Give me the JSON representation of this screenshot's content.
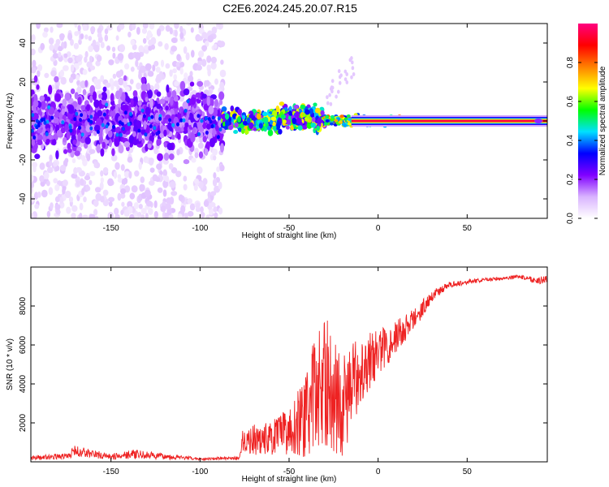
{
  "title": "C2E6.2024.245.20.07.R15",
  "chart_data": [
    {
      "type": "heatmap",
      "xlabel": "Height of straight line (km)",
      "ylabel": "Frequency (Hz)",
      "xlim": [
        -195,
        95
      ],
      "ylim": [
        -50,
        50
      ],
      "x_ticks": [
        -150,
        -100,
        -50,
        0,
        50
      ],
      "y_ticks": [
        -40,
        -20,
        0,
        20,
        40
      ],
      "colorbar": {
        "label": "Normalized spectral amplitude",
        "range": [
          0,
          1
        ],
        "ticks": [
          0.0,
          0.2,
          0.4,
          0.6,
          0.8
        ],
        "colors": [
          "#ffffff",
          "#d9b3ff",
          "#8000ff",
          "#0000ff",
          "#00e0ff",
          "#00ff00",
          "#ffff00",
          "#ff8000",
          "#ff0000",
          "#ff0080"
        ]
      },
      "regions": [
        {
          "x_range": [
            -195,
            -87
          ],
          "description_values": {
            "core_half_width_hz": 12,
            "scatter_half_width_hz": 50,
            "peak_amplitude": 0.3
          }
        },
        {
          "x_range": [
            -87,
            -30
          ],
          "description_values": {
            "core_half_width_hz": 5,
            "peak_amplitude": 0.55
          }
        },
        {
          "x_range": [
            -30,
            12
          ],
          "description_values": {
            "core_half_width_hz": 3,
            "peak_amplitude": 0.85
          }
        },
        {
          "x_range": [
            -15,
            95
          ],
          "description_values": {
            "line_frequency_hz": 0,
            "peak_amplitude": 0.95
          }
        }
      ]
    },
    {
      "type": "line",
      "xlabel": "Height of straight line (km)",
      "ylabel": "SNR (10 * v/v)",
      "xlim": [
        -195,
        95
      ],
      "ylim": [
        0,
        10000
      ],
      "x_ticks": [
        -150,
        -100,
        -50,
        0,
        50
      ],
      "y_ticks": [
        2000,
        4000,
        6000,
        8000
      ],
      "color": "#ee2222",
      "envelope": {
        "x": [
          -195,
          -175,
          -170,
          -150,
          -140,
          -100,
          -78,
          -76,
          -60,
          -50,
          -40,
          -35,
          -30,
          -20,
          -10,
          0,
          10,
          20,
          30,
          40,
          60,
          80,
          90,
          95
        ],
        "mean": [
          200,
          300,
          550,
          250,
          400,
          150,
          200,
          1100,
          1200,
          1600,
          2400,
          3600,
          4200,
          2800,
          4800,
          5600,
          6400,
          7300,
          8500,
          9100,
          9350,
          9500,
          9300,
          9400
        ],
        "noise": [
          120,
          150,
          300,
          150,
          250,
          60,
          80,
          700,
          900,
          1200,
          2200,
          3200,
          3400,
          2600,
          1800,
          1200,
          900,
          600,
          300,
          150,
          100,
          100,
          200,
          150
        ]
      }
    }
  ]
}
